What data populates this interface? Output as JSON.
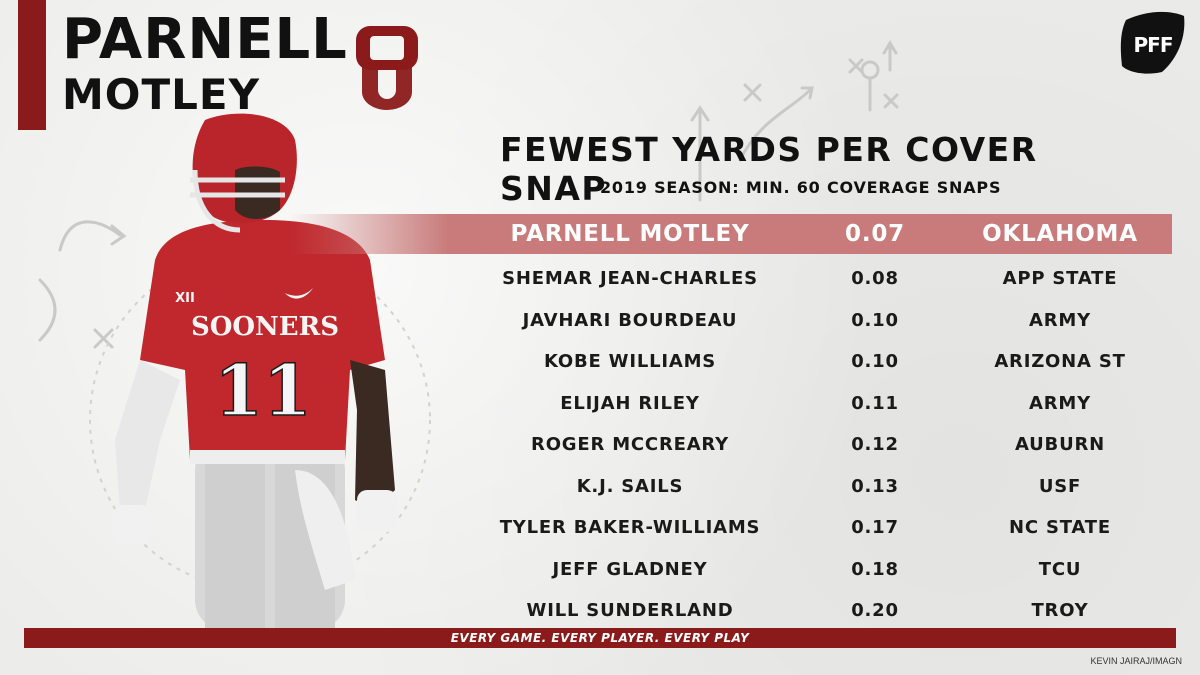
{
  "header": {
    "first_name": "PARNELL",
    "last_name": "MOTLEY"
  },
  "logos": {
    "team": "OU",
    "brand": "PFF"
  },
  "chart": {
    "title": "FEWEST YARDS PER COVER SNAP",
    "subtitle": "2019 SEASON: MIN. 60 COVERAGE SNAPS"
  },
  "rows": [
    {
      "name": "PARNELL MOTLEY",
      "value": "0.07",
      "team": "OKLAHOMA",
      "highlight": true
    },
    {
      "name": "SHEMAR JEAN-CHARLES",
      "value": "0.08",
      "team": "APP STATE"
    },
    {
      "name": "JAVHARI BOURDEAU",
      "value": "0.10",
      "team": "ARMY"
    },
    {
      "name": "KOBE WILLIAMS",
      "value": "0.10",
      "team": "ARIZONA ST"
    },
    {
      "name": "ELIJAH RILEY",
      "value": "0.11",
      "team": "ARMY"
    },
    {
      "name": "ROGER MCCREARY",
      "value": "0.12",
      "team": "AUBURN"
    },
    {
      "name": "K.J. SAILS",
      "value": "0.13",
      "team": "USF"
    },
    {
      "name": "TYLER BAKER-WILLIAMS",
      "value": "0.17",
      "team": "NC STATE"
    },
    {
      "name": "JEFF GLADNEY",
      "value": "0.18",
      "team": "TCU"
    },
    {
      "name": "WILL SUNDERLAND",
      "value": "0.20",
      "team": "TROY"
    }
  ],
  "photo": {
    "jersey_text": "SOONERS",
    "jersey_number": "11",
    "conference_mark": "XII"
  },
  "footer": {
    "tagline": "EVERY GAME. EVERY PLAYER. EVERY PLAY",
    "credit": "KEVIN JAIRAJ/IMAGN"
  },
  "colors": {
    "crimson": "#8b1a1a",
    "highlight_row": "#c97b7b",
    "background": "#ececea"
  }
}
